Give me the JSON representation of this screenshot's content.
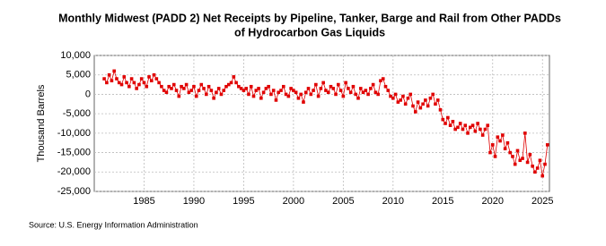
{
  "chart_data": {
    "type": "line",
    "title": [
      "Monthly Midwest (PADD 2) Net Receipts by Pipeline, Tanker, Barge and Rail from Other PADDs",
      "of Hydrocarbon Gas Liquids"
    ],
    "y_label": "Thousand Barrels",
    "source": "Source: U.S. Energy Information Administration",
    "grid": true,
    "xlim": [
      1980,
      2025.7
    ],
    "xticks": [
      1985,
      1990,
      1995,
      2000,
      2005,
      2010,
      2015,
      2020,
      2025
    ],
    "ylim": [
      -25000,
      10000
    ],
    "yticks": [
      {
        "value": -25000,
        "label": "-25,000"
      },
      {
        "value": -20000,
        "label": "-20,000"
      },
      {
        "value": -15000,
        "label": "-15,000"
      },
      {
        "value": -10000,
        "label": "-10,000"
      },
      {
        "value": -5000,
        "label": "-5,000"
      },
      0,
      {
        "value": 5000,
        "label": "5,000"
      },
      {
        "value": 10000,
        "label": "10,000"
      }
    ],
    "x": [
      1981,
      1981.25,
      1981.5,
      1981.75,
      1982,
      1982.25,
      1982.5,
      1982.75,
      1983,
      1983.25,
      1983.5,
      1983.75,
      1984,
      1984.25,
      1984.5,
      1984.75,
      1985,
      1985.25,
      1985.5,
      1985.75,
      1986,
      1986.25,
      1986.5,
      1986.75,
      1987,
      1987.25,
      1987.5,
      1987.75,
      1988,
      1988.25,
      1988.5,
      1988.75,
      1989,
      1989.25,
      1989.5,
      1989.75,
      1990,
      1990.25,
      1990.5,
      1990.75,
      1991,
      1991.25,
      1991.5,
      1991.75,
      1992,
      1992.25,
      1992.5,
      1992.75,
      1993,
      1993.25,
      1993.5,
      1993.75,
      1994,
      1994.25,
      1994.5,
      1994.75,
      1995,
      1995.25,
      1995.5,
      1995.75,
      1996,
      1996.25,
      1996.5,
      1996.75,
      1997,
      1997.25,
      1997.5,
      1997.75,
      1998,
      1998.25,
      1998.5,
      1998.75,
      1999,
      1999.25,
      1999.5,
      1999.75,
      2000,
      2000.25,
      2000.5,
      2000.75,
      2001,
      2001.25,
      2001.5,
      2001.75,
      2002,
      2002.25,
      2002.5,
      2002.75,
      2003,
      2003.25,
      2003.5,
      2003.75,
      2004,
      2004.25,
      2004.5,
      2004.75,
      2005,
      2005.25,
      2005.5,
      2005.75,
      2006,
      2006.25,
      2006.5,
      2006.75,
      2007,
      2007.25,
      2007.5,
      2007.75,
      2008,
      2008.25,
      2008.5,
      2008.75,
      2009,
      2009.25,
      2009.5,
      2009.75,
      2010,
      2010.25,
      2010.5,
      2010.75,
      2011,
      2011.25,
      2011.5,
      2011.75,
      2012,
      2012.25,
      2012.5,
      2012.75,
      2013,
      2013.25,
      2013.5,
      2013.75,
      2014,
      2014.25,
      2014.5,
      2014.75,
      2015,
      2015.25,
      2015.5,
      2015.75,
      2016,
      2016.25,
      2016.5,
      2016.75,
      2017,
      2017.25,
      2017.5,
      2017.75,
      2018,
      2018.25,
      2018.5,
      2018.75,
      2019,
      2019.25,
      2019.5,
      2019.75,
      2020,
      2020.25,
      2020.5,
      2020.75,
      2021,
      2021.25,
      2021.5,
      2021.75,
      2022,
      2022.25,
      2022.5,
      2022.75,
      2023,
      2023.25,
      2023.5,
      2023.75,
      2024,
      2024.25,
      2024.5,
      2024.75,
      2025,
      2025.25,
      2025.5
    ],
    "series": [
      {
        "color": "#e00000",
        "values": [
          4000,
          3000,
          5000,
          3500,
          6000,
          4000,
          3000,
          2500,
          4500,
          3000,
          2000,
          4000,
          3000,
          1500,
          2500,
          4000,
          3000,
          2000,
          4500,
          3500,
          5000,
          4000,
          3000,
          2000,
          1000,
          500,
          2000,
          1500,
          2500,
          1000,
          -500,
          2000,
          1500,
          2500,
          500,
          1000,
          2000,
          -500,
          1000,
          2500,
          1500,
          0,
          2000,
          1000,
          -1000,
          500,
          1500,
          0,
          1000,
          2000,
          2500,
          3000,
          4500,
          3000,
          2000,
          1500,
          1000,
          1500,
          0,
          2000,
          -500,
          1000,
          1500,
          -1000,
          500,
          1500,
          2000,
          0,
          1000,
          -1500,
          500,
          1000,
          2000,
          0,
          -500,
          1500,
          1000,
          500,
          -1000,
          0,
          -2000,
          500,
          1500,
          0,
          1000,
          2500,
          -500,
          1500,
          3000,
          1000,
          500,
          2000,
          1500,
          0,
          2500,
          1000,
          -500,
          3000,
          1500,
          500,
          2000,
          0,
          -1000,
          1500,
          500,
          1000,
          0,
          1500,
          2500,
          500,
          0,
          3500,
          4000,
          2000,
          1000,
          -500,
          -1000,
          0,
          -2000,
          -1500,
          -500,
          -2500,
          -1000,
          0,
          -3000,
          -4500,
          -2000,
          -3500,
          -2500,
          -1500,
          -3000,
          -1000,
          0,
          -2500,
          -1500,
          -4000,
          -6500,
          -7500,
          -6000,
          -8000,
          -7000,
          -9000,
          -8500,
          -7500,
          -9000,
          -8000,
          -10000,
          -8500,
          -8000,
          -9500,
          -7500,
          -9000,
          -10500,
          -9000,
          -8000,
          -15000,
          -13000,
          -16000,
          -11000,
          -12000,
          -10500,
          -14000,
          -12500,
          -15000,
          -16000,
          -18000,
          -14500,
          -17000,
          -16500,
          -10000,
          -17500,
          -15500,
          -18500,
          -20000,
          -19000,
          -17000,
          -21000,
          -18000,
          -13000
        ]
      }
    ]
  }
}
